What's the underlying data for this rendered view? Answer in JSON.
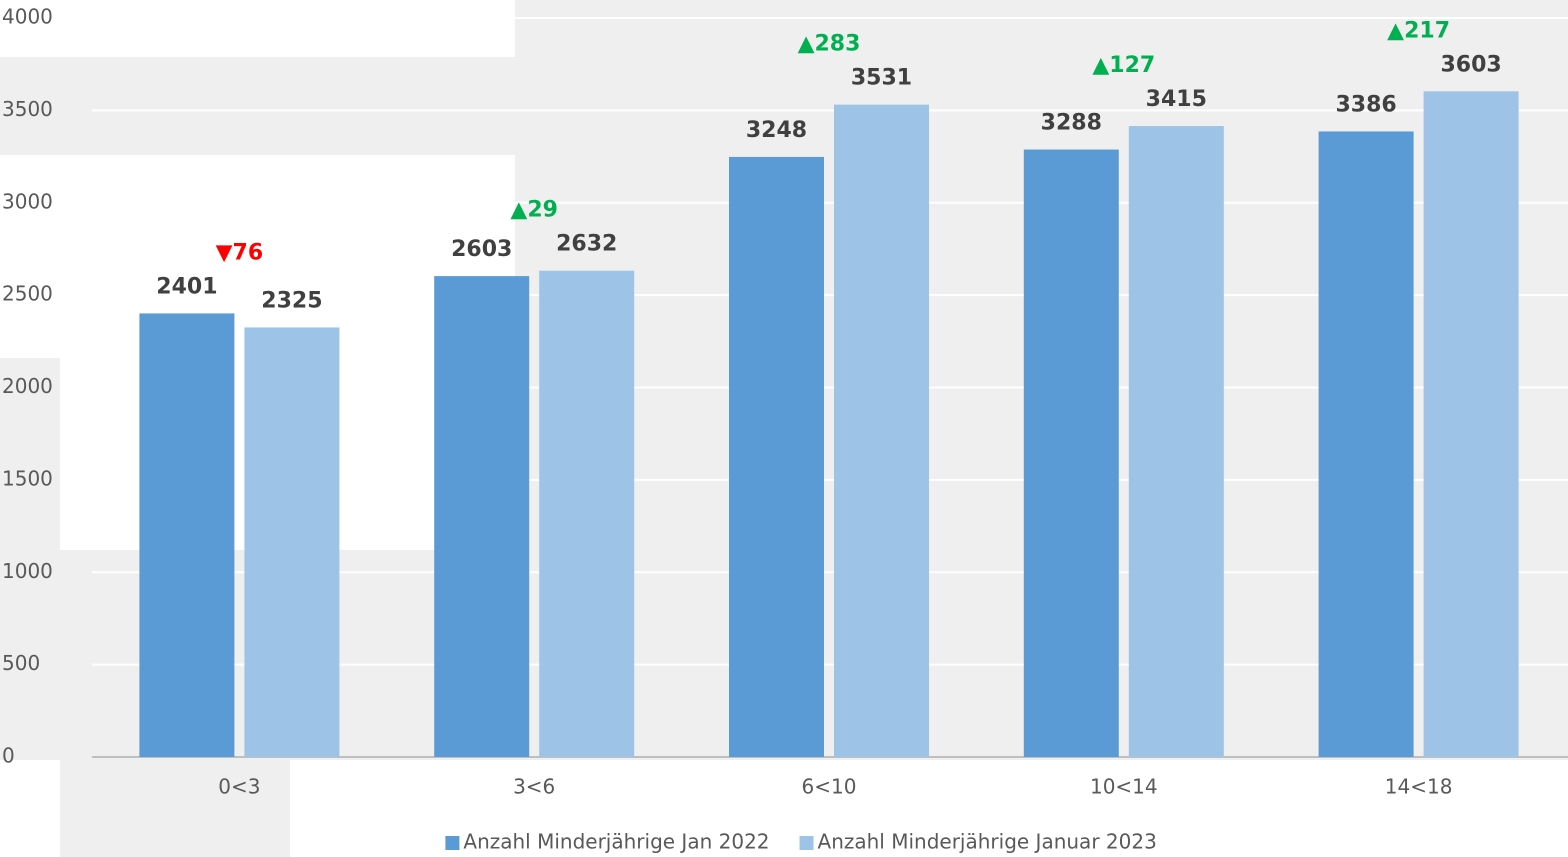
{
  "chart_data": {
    "type": "bar",
    "categories": [
      "0<3",
      "3<6",
      "6<10",
      "10<14",
      "14<18"
    ],
    "series": [
      {
        "name": "Anzahl Minderjährige Jan 2022",
        "color": "#5b9bd5",
        "values": [
          2401,
          2603,
          3248,
          3288,
          3386
        ]
      },
      {
        "name": "Anzahl Minderjährige Januar 2023",
        "color": "#9dc3e6",
        "values": [
          2325,
          2632,
          3531,
          3415,
          3603
        ]
      }
    ],
    "annotations": [
      {
        "text": "▼76",
        "color": "#ff0000"
      },
      {
        "text": "▲29",
        "color": "#00b050"
      },
      {
        "text": "▲283",
        "color": "#00b050"
      },
      {
        "text": "▲127",
        "color": "#00b050"
      },
      {
        "text": "▲217",
        "color": "#00b050"
      }
    ],
    "ylim": [
      0,
      4000
    ],
    "yticks": [
      0,
      500,
      1000,
      1500,
      2000,
      2500,
      3000,
      3500,
      4000
    ],
    "grid": true,
    "legend": "bottom"
  }
}
